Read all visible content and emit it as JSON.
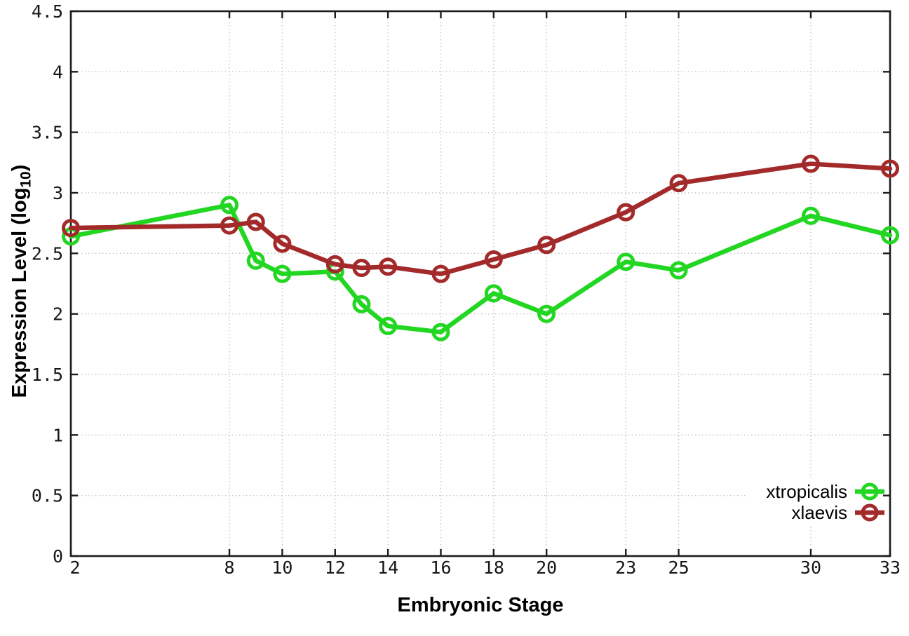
{
  "page": {
    "background": "#ffffff"
  },
  "axes": {
    "x_title": "Embryonic Stage",
    "y_title_pre": "Expression Level (log",
    "y_title_sub": "10",
    "y_title_post": ")"
  },
  "chart_data": {
    "type": "line",
    "title": "",
    "xlabel": "Embryonic Stage",
    "ylabel": "Expression Level (log10)",
    "xlim": [
      2,
      33
    ],
    "ylim": [
      0,
      4.5
    ],
    "grid": true,
    "marker": "open-circle",
    "x": [
      2,
      8,
      9,
      10,
      12,
      13,
      14,
      16,
      18,
      20,
      23,
      25,
      30,
      33
    ],
    "xticks": {
      "values": [
        2,
        8,
        10,
        12,
        14,
        16,
        18,
        20,
        23,
        25,
        30,
        33
      ],
      "labels": [
        "2",
        "8",
        "10",
        "12",
        "14",
        "16",
        "18",
        "20",
        "23",
        "25",
        "30",
        "33"
      ]
    },
    "yticks": {
      "values": [
        0,
        0.5,
        1,
        1.5,
        2,
        2.5,
        3,
        3.5,
        4,
        4.5
      ],
      "labels": [
        "0",
        "0.5",
        "1",
        "1.5",
        "2",
        "2.5",
        "3",
        "3.5",
        "4",
        "4.5"
      ]
    },
    "legend": {
      "position": "inside-bottom-right"
    },
    "series": [
      {
        "name": "xtropicalis",
        "color": "#22d622",
        "values": [
          2.64,
          2.9,
          2.44,
          2.33,
          2.35,
          2.08,
          1.9,
          1.85,
          2.17,
          2.0,
          2.43,
          2.36,
          2.81,
          2.65
        ]
      },
      {
        "name": "xlaevis",
        "color": "#a32a2a",
        "values": [
          2.71,
          2.73,
          2.76,
          2.58,
          2.41,
          2.38,
          2.39,
          2.33,
          2.45,
          2.57,
          2.84,
          3.08,
          3.24,
          3.2
        ]
      }
    ]
  }
}
